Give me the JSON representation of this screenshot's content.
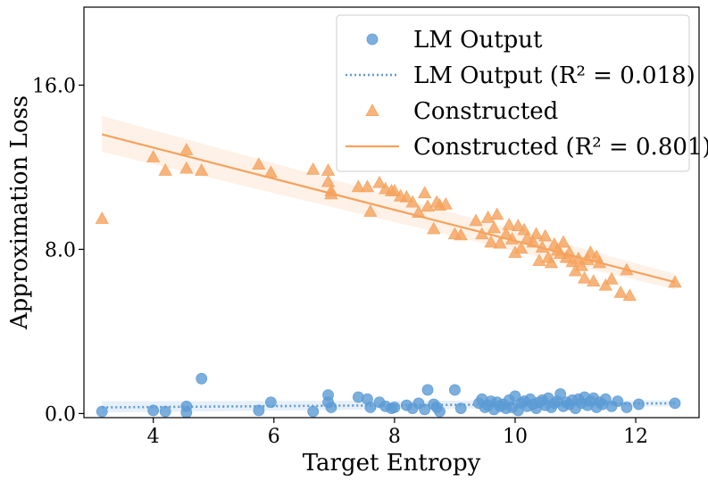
{
  "chart_data": {
    "type": "scatter",
    "title": "",
    "xlabel": "Target Entropy",
    "ylabel": "Approximation Loss",
    "xlim": [
      2.85,
      13.05
    ],
    "ylim": [
      -0.2,
      19.8
    ],
    "xticks": [
      4,
      6,
      8,
      10,
      12
    ],
    "xtick_labels": [
      "4",
      "6",
      "8",
      "10",
      "12"
    ],
    "yticks": [
      0,
      8,
      16
    ],
    "ytick_labels": [
      "0.0",
      "8.0",
      "16.0"
    ],
    "legend_position": "top-right",
    "series": [
      {
        "name": "LM Output",
        "marker": "circle",
        "color": "#5b9bd5",
        "points": [
          [
            3.15,
            0.1
          ],
          [
            4.0,
            0.15
          ],
          [
            4.2,
            0.1
          ],
          [
            4.55,
            0.35
          ],
          [
            4.55,
            0.05
          ],
          [
            4.8,
            1.7
          ],
          [
            5.75,
            0.15
          ],
          [
            5.95,
            0.55
          ],
          [
            6.65,
            0.1
          ],
          [
            6.9,
            0.9
          ],
          [
            6.9,
            0.55
          ],
          [
            6.95,
            0.3
          ],
          [
            7.4,
            0.8
          ],
          [
            7.55,
            0.7
          ],
          [
            7.6,
            0.3
          ],
          [
            7.75,
            0.55
          ],
          [
            7.85,
            0.35
          ],
          [
            7.95,
            0.25
          ],
          [
            8.0,
            0.3
          ],
          [
            8.2,
            0.4
          ],
          [
            8.3,
            0.25
          ],
          [
            8.4,
            0.5
          ],
          [
            8.5,
            0.2
          ],
          [
            8.55,
            1.15
          ],
          [
            8.65,
            0.45
          ],
          [
            8.7,
            0.3
          ],
          [
            8.75,
            0.1
          ],
          [
            9.0,
            1.15
          ],
          [
            9.1,
            0.25
          ],
          [
            9.4,
            0.5
          ],
          [
            9.45,
            0.7
          ],
          [
            9.5,
            0.3
          ],
          [
            9.55,
            0.4
          ],
          [
            9.6,
            0.6
          ],
          [
            9.65,
            0.2
          ],
          [
            9.7,
            0.55
          ],
          [
            9.75,
            0.35
          ],
          [
            9.8,
            0.45
          ],
          [
            9.85,
            0.25
          ],
          [
            9.9,
            0.65
          ],
          [
            9.95,
            0.3
          ],
          [
            10.0,
            0.85
          ],
          [
            10.05,
            0.15
          ],
          [
            10.1,
            0.5
          ],
          [
            10.15,
            0.6
          ],
          [
            10.2,
            0.35
          ],
          [
            10.25,
            0.7
          ],
          [
            10.3,
            0.45
          ],
          [
            10.35,
            0.25
          ],
          [
            10.4,
            0.55
          ],
          [
            10.45,
            0.65
          ],
          [
            10.5,
            0.4
          ],
          [
            10.55,
            0.75
          ],
          [
            10.6,
            0.3
          ],
          [
            10.65,
            0.5
          ],
          [
            10.7,
            0.6
          ],
          [
            10.75,
            0.95
          ],
          [
            10.8,
            0.35
          ],
          [
            10.85,
            0.55
          ],
          [
            10.9,
            0.45
          ],
          [
            10.95,
            0.65
          ],
          [
            11.0,
            0.25
          ],
          [
            11.05,
            0.7
          ],
          [
            11.1,
            0.5
          ],
          [
            11.15,
            0.8
          ],
          [
            11.2,
            0.4
          ],
          [
            11.25,
            0.6
          ],
          [
            11.3,
            0.75
          ],
          [
            11.35,
            0.3
          ],
          [
            11.4,
            0.55
          ],
          [
            11.45,
            0.45
          ],
          [
            11.5,
            0.7
          ],
          [
            11.6,
            0.35
          ],
          [
            11.7,
            0.6
          ],
          [
            11.85,
            0.3
          ],
          [
            12.05,
            0.45
          ],
          [
            12.65,
            0.5
          ]
        ]
      },
      {
        "name": "Constructed",
        "marker": "triangle",
        "color": "#f5a25d",
        "points": [
          [
            3.15,
            9.5
          ],
          [
            4.0,
            12.5
          ],
          [
            4.2,
            11.85
          ],
          [
            4.55,
            11.95
          ],
          [
            4.55,
            12.85
          ],
          [
            4.8,
            11.85
          ],
          [
            5.75,
            12.15
          ],
          [
            5.95,
            11.75
          ],
          [
            6.65,
            11.9
          ],
          [
            6.9,
            11.85
          ],
          [
            6.9,
            11.3
          ],
          [
            6.95,
            10.85
          ],
          [
            6.95,
            10.7
          ],
          [
            7.4,
            11.05
          ],
          [
            7.55,
            11.05
          ],
          [
            7.6,
            9.85
          ],
          [
            7.75,
            11.25
          ],
          [
            7.85,
            10.95
          ],
          [
            7.95,
            10.85
          ],
          [
            8.0,
            10.85
          ],
          [
            8.1,
            10.6
          ],
          [
            8.2,
            10.55
          ],
          [
            8.3,
            10.3
          ],
          [
            8.4,
            9.8
          ],
          [
            8.5,
            10.75
          ],
          [
            8.55,
            10.1
          ],
          [
            8.65,
            9.0
          ],
          [
            8.7,
            10.3
          ],
          [
            8.75,
            10.15
          ],
          [
            8.85,
            10.2
          ],
          [
            9.0,
            8.75
          ],
          [
            9.1,
            8.7
          ],
          [
            9.35,
            9.4
          ],
          [
            9.45,
            8.75
          ],
          [
            9.55,
            9.55
          ],
          [
            9.6,
            8.35
          ],
          [
            9.65,
            9.05
          ],
          [
            9.7,
            9.7
          ],
          [
            9.75,
            8.3
          ],
          [
            9.85,
            8.75
          ],
          [
            9.9,
            9.2
          ],
          [
            9.95,
            8.5
          ],
          [
            10.0,
            7.85
          ],
          [
            10.05,
            9.15
          ],
          [
            10.1,
            8.05
          ],
          [
            10.15,
            8.95
          ],
          [
            10.2,
            8.55
          ],
          [
            10.3,
            8.35
          ],
          [
            10.35,
            8.75
          ],
          [
            10.4,
            7.45
          ],
          [
            10.45,
            8.1
          ],
          [
            10.5,
            8.65
          ],
          [
            10.55,
            7.6
          ],
          [
            10.6,
            7.35
          ],
          [
            10.65,
            8.25
          ],
          [
            10.7,
            7.95
          ],
          [
            10.75,
            7.8
          ],
          [
            10.8,
            8.35
          ],
          [
            10.85,
            7.6
          ],
          [
            10.9,
            7.85
          ],
          [
            10.95,
            7.4
          ],
          [
            11.0,
            6.95
          ],
          [
            11.05,
            7.55
          ],
          [
            11.1,
            7.2
          ],
          [
            11.15,
            6.6
          ],
          [
            11.2,
            7.5
          ],
          [
            11.25,
            7.85
          ],
          [
            11.3,
            6.45
          ],
          [
            11.35,
            7.65
          ],
          [
            11.4,
            7.35
          ],
          [
            11.5,
            6.25
          ],
          [
            11.6,
            6.55
          ],
          [
            11.75,
            5.9
          ],
          [
            11.85,
            7.0
          ],
          [
            11.9,
            5.75
          ],
          [
            12.65,
            6.4
          ]
        ]
      }
    ],
    "fits": [
      {
        "name": "LM Output (R² = 0.018)",
        "style": "dotted",
        "color": "#5b9bd5",
        "x": [
          3.15,
          12.65
        ],
        "y": [
          0.3,
          0.5
        ],
        "ci_low": [
          0.05,
          0.35
        ],
        "ci_high": [
          0.6,
          0.65
        ]
      },
      {
        "name": "Constructed (R² = 0.801)",
        "style": "solid",
        "color": "#f5a25d",
        "x": [
          3.15,
          12.65
        ],
        "y": [
          13.6,
          6.4
        ],
        "ci_low": [
          12.75,
          6.05
        ],
        "ci_high": [
          14.5,
          6.8
        ]
      }
    ],
    "legend": [
      {
        "label": "LM Output",
        "kind": "circle",
        "color": "#5b9bd5"
      },
      {
        "label": "LM Output (R² = 0.018)",
        "kind": "dotted-line",
        "color": "#5b9bd5"
      },
      {
        "label": "Constructed",
        "kind": "triangle",
        "color": "#f5a25d"
      },
      {
        "label": "Constructed (R² = 0.801)",
        "kind": "solid-line",
        "color": "#f5a25d"
      }
    ]
  }
}
